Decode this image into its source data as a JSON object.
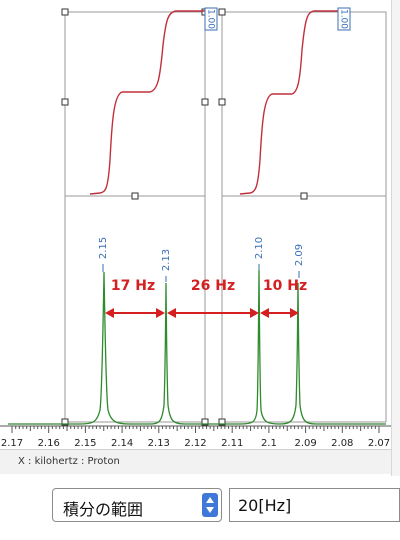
{
  "spectrum": {
    "integral_labels": [
      "1.00",
      "1.00"
    ],
    "peak_labels": [
      "2.15",
      "2.13",
      "2.10",
      "2.09"
    ],
    "annotations": [
      "17 Hz",
      "26 Hz",
      "10 Hz"
    ],
    "axis": {
      "min": 2.07,
      "max": 2.17,
      "tick_labels": [
        "2.17",
        "2.16",
        "2.15",
        "2.14",
        "2.13",
        "2.12",
        "2.11",
        "2.1",
        "2.09",
        "2.08",
        "2.07"
      ]
    },
    "status": "X : kilohertz : Proton"
  },
  "controls": {
    "range_select": "積分の範囲",
    "range_value": "20[Hz]"
  },
  "colors": {
    "spectrum": "#2e8b2e",
    "integral": "#c0303c",
    "annotation": "#d42020",
    "peak_label": "#3a6fb5",
    "select_arrow": "#3f78d8"
  }
}
